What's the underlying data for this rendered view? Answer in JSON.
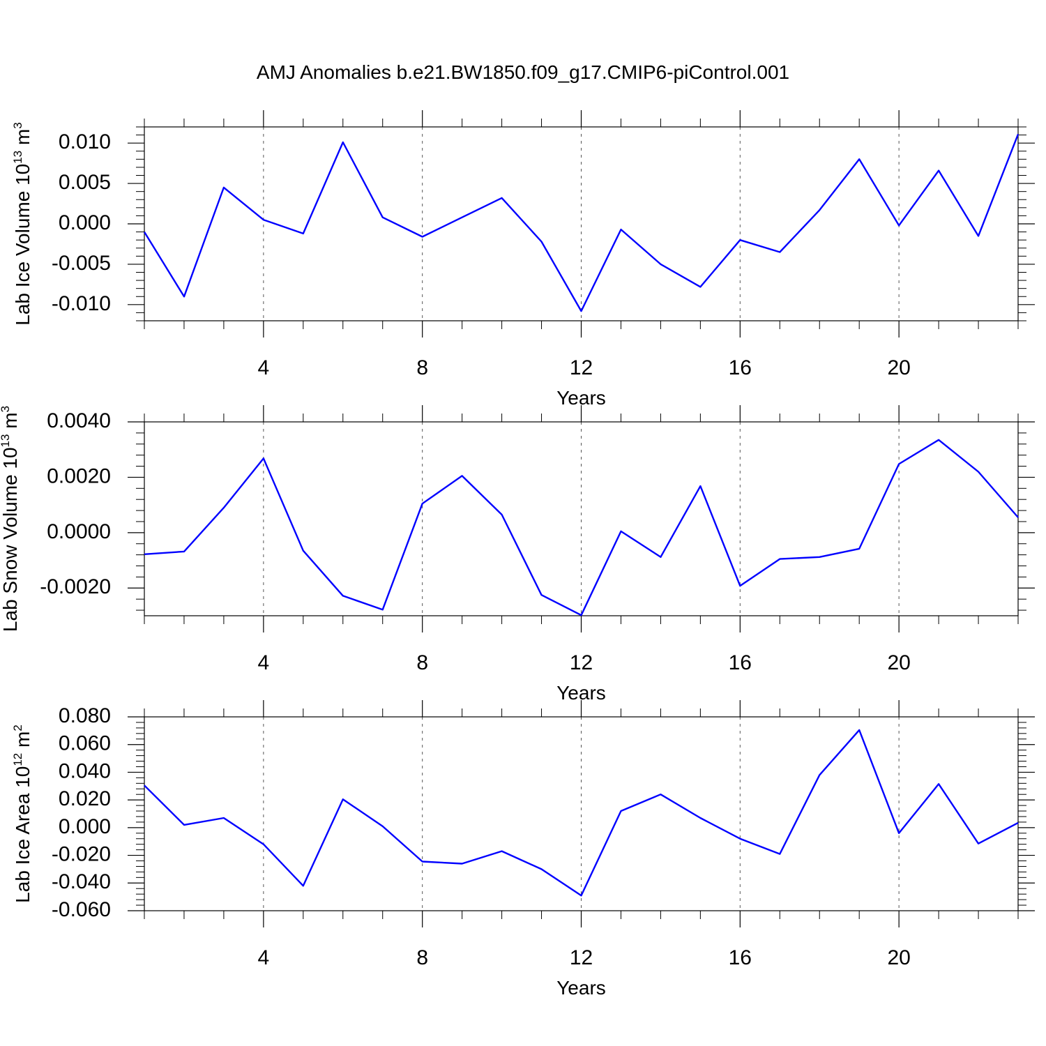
{
  "title": "AMJ Anomalies b.e21.BW1850.f09_g17.CMIP6-piControl.001",
  "colors": {
    "series": "#0000ff",
    "frame": "#000000",
    "grid": "#555555"
  },
  "chart_data": [
    {
      "type": "line",
      "xlabel": "Years",
      "ylabel_parts": {
        "text": "Lab Ice Volume 10",
        "exp": "13",
        "unit": " m",
        "unit_exp": "3"
      },
      "x": [
        1,
        2,
        3,
        4,
        5,
        6,
        7,
        8,
        9,
        10,
        11,
        12,
        13,
        14,
        15,
        16,
        17,
        18,
        19,
        20,
        21,
        22,
        23
      ],
      "values": [
        -0.001,
        -0.009,
        0.0045,
        0.0005,
        -0.0012,
        0.0101,
        0.0008,
        -0.0016,
        0.0008,
        0.0032,
        -0.0022,
        -0.0108,
        -0.0007,
        -0.005,
        -0.0078,
        -0.002,
        -0.0035,
        0.0017,
        0.008,
        -0.0002,
        0.0066,
        -0.0015,
        0.0111
      ],
      "xlim": [
        1,
        23
      ],
      "ylim": [
        -0.012,
        0.012
      ],
      "yticks": [
        -0.01,
        -0.005,
        0.0,
        0.005,
        0.01
      ],
      "ytick_labels": [
        "-0.010",
        "-0.005",
        "0.000",
        "0.005",
        "0.010"
      ],
      "xticks": [
        4,
        8,
        12,
        16,
        20
      ],
      "xtick_labels": [
        "4",
        "8",
        "12",
        "16",
        "20"
      ],
      "grid": "vertical dashed at major x ticks"
    },
    {
      "type": "line",
      "xlabel": "Years",
      "ylabel_parts": {
        "text": "Lab Snow Volume 10",
        "exp": "13",
        "unit": " m",
        "unit_exp": "3"
      },
      "x": [
        1,
        2,
        3,
        4,
        5,
        6,
        7,
        8,
        9,
        10,
        11,
        12,
        13,
        14,
        15,
        16,
        17,
        18,
        19,
        20,
        21,
        22,
        23
      ],
      "values": [
        -0.00078,
        -0.00068,
        0.0009,
        0.00268,
        -0.00065,
        -0.00228,
        -0.00278,
        0.00105,
        0.00205,
        0.00065,
        -0.00225,
        -0.00298,
        5e-05,
        -0.00088,
        0.00168,
        -0.00192,
        -0.00095,
        -0.00088,
        -0.00058,
        0.00248,
        0.00335,
        0.0022,
        0.00055
      ],
      "xlim": [
        1,
        23
      ],
      "ylim": [
        -0.003,
        0.004
      ],
      "yticks": [
        -0.002,
        0.0,
        0.002,
        0.004
      ],
      "ytick_labels": [
        "-0.0020",
        "0.0000",
        "0.0020",
        "0.0040"
      ],
      "xticks": [
        4,
        8,
        12,
        16,
        20
      ],
      "xtick_labels": [
        "4",
        "8",
        "12",
        "16",
        "20"
      ],
      "grid": "vertical dashed at major x ticks"
    },
    {
      "type": "line",
      "xlabel": "Years",
      "ylabel_parts": {
        "text": "Lab Ice Area 10",
        "exp": "12",
        "unit": " m",
        "unit_exp": "2"
      },
      "x": [
        1,
        2,
        3,
        4,
        5,
        6,
        7,
        8,
        9,
        10,
        11,
        12,
        13,
        14,
        15,
        16,
        17,
        18,
        19,
        20,
        21,
        22,
        23
      ],
      "values": [
        0.0305,
        0.002,
        0.007,
        -0.012,
        -0.042,
        0.0205,
        0.001,
        -0.0245,
        -0.026,
        -0.017,
        -0.03,
        -0.049,
        0.012,
        0.024,
        0.007,
        -0.008,
        -0.019,
        0.038,
        0.0705,
        -0.004,
        0.0315,
        -0.0115,
        0.0035
      ],
      "xlim": [
        1,
        23
      ],
      "ylim": [
        -0.06,
        0.08
      ],
      "yticks": [
        -0.06,
        -0.04,
        -0.02,
        0.0,
        0.02,
        0.04,
        0.06,
        0.08
      ],
      "ytick_labels": [
        "-0.060",
        "-0.040",
        "-0.020",
        "0.000",
        "0.020",
        "0.040",
        "0.060",
        "0.080"
      ],
      "xticks": [
        4,
        8,
        12,
        16,
        20
      ],
      "xtick_labels": [
        "4",
        "8",
        "12",
        "16",
        "20"
      ],
      "grid": "vertical dashed at major x ticks"
    }
  ]
}
